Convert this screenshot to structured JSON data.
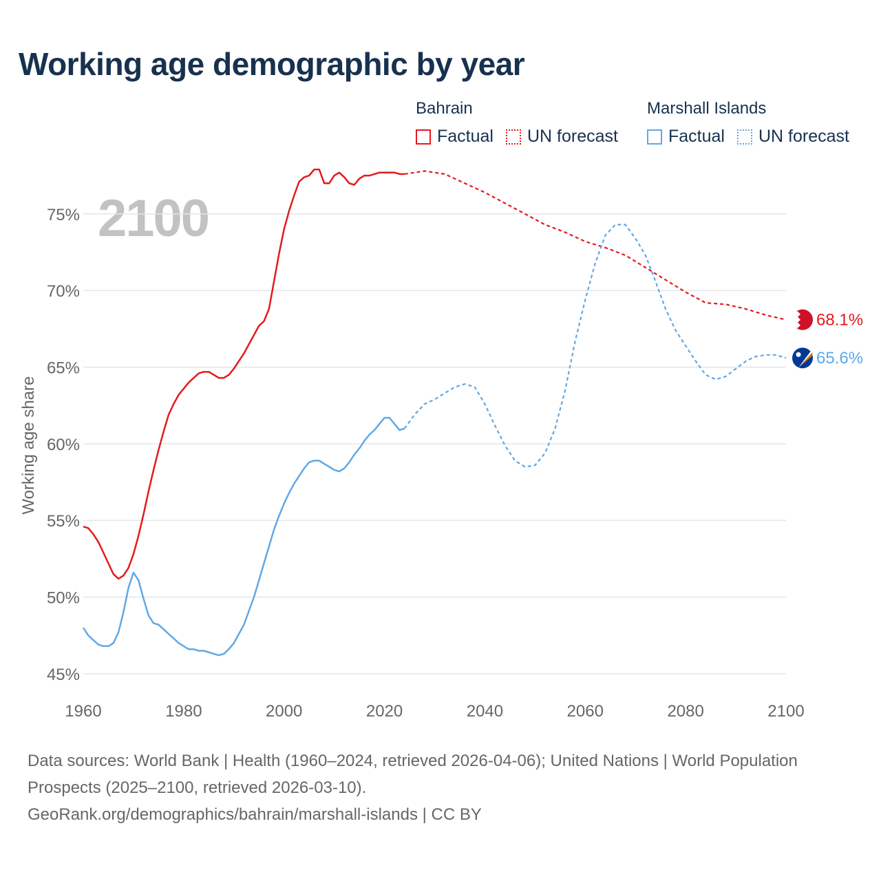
{
  "title": "Working age demographic by year",
  "legend": [
    {
      "country": "Bahrain",
      "factual_label": "Factual",
      "forecast_label": "UN forecast",
      "color": "#e31a1c"
    },
    {
      "country": "Marshall Islands",
      "factual_label": "Factual",
      "forecast_label": "UN forecast",
      "color": "#5fa8e6"
    }
  ],
  "footer": {
    "sources": "Data sources: World Bank | Health (1960–2024, retrieved 2026-04-06); United Nations | World Population Prospects (2025–2100, retrieved 2026-03-10).",
    "credit": "GeoRank.org/demographics/bahrain/marshall-islands | CC BY"
  },
  "chart_data": {
    "type": "line",
    "title": "Working age demographic by year",
    "year_label": "2100",
    "xlabel": "",
    "ylabel": "Working age share",
    "xlim": [
      1960,
      2100
    ],
    "ylim": [
      44.5,
      78
    ],
    "x_ticks": [
      1960,
      1980,
      2000,
      2020,
      2040,
      2060,
      2080,
      2100
    ],
    "x_tick_labels": [
      "1960",
      "1980",
      "2000",
      "2020",
      "2040",
      "2060",
      "2080",
      "2100"
    ],
    "y_ticks": [
      45,
      50,
      55,
      60,
      65,
      70,
      75
    ],
    "y_tick_labels": [
      "45%",
      "50%",
      "55%",
      "60%",
      "65%",
      "70%",
      "75%"
    ],
    "grid": true,
    "series": [
      {
        "name": "Bahrain",
        "color": "#e31a1c",
        "end_label": "68.1%",
        "factual": {
          "x": [
            1960,
            1961,
            1962,
            1963,
            1964,
            1965,
            1966,
            1967,
            1968,
            1969,
            1970,
            1971,
            1972,
            1973,
            1974,
            1975,
            1976,
            1977,
            1978,
            1979,
            1980,
            1981,
            1982,
            1983,
            1984,
            1985,
            1986,
            1987,
            1988,
            1989,
            1990,
            1991,
            1992,
            1993,
            1994,
            1995,
            1996,
            1997,
            1998,
            1999,
            2000,
            2001,
            2002,
            2003,
            2004,
            2005,
            2006,
            2007,
            2008,
            2009,
            2010,
            2011,
            2012,
            2013,
            2014,
            2015,
            2016,
            2017,
            2018,
            2019,
            2020,
            2021,
            2022,
            2023,
            2024
          ],
          "y": [
            54.6,
            54.5,
            54.1,
            53.6,
            52.9,
            52.2,
            51.5,
            51.2,
            51.4,
            51.9,
            52.8,
            54.0,
            55.4,
            56.9,
            58.3,
            59.6,
            60.8,
            61.9,
            62.6,
            63.2,
            63.6,
            64.0,
            64.3,
            64.6,
            64.7,
            64.7,
            64.5,
            64.3,
            64.3,
            64.5,
            64.9,
            65.4,
            65.9,
            66.5,
            67.1,
            67.7,
            68.0,
            68.8,
            70.6,
            72.4,
            74.0,
            75.2,
            76.2,
            77.1,
            77.4,
            77.5,
            77.9,
            77.9,
            77.0,
            77.0,
            77.5,
            77.7,
            77.4,
            77.0,
            76.9,
            77.3,
            77.5,
            77.5,
            77.6,
            77.7,
            77.7,
            77.7,
            77.7,
            77.6,
            77.6
          ]
        },
        "forecast": {
          "x": [
            2024,
            2028,
            2032,
            2036,
            2040,
            2044,
            2048,
            2052,
            2056,
            2060,
            2064,
            2068,
            2072,
            2076,
            2080,
            2084,
            2088,
            2092,
            2096,
            2100
          ],
          "y": [
            77.6,
            77.8,
            77.6,
            77.0,
            76.4,
            75.7,
            75.0,
            74.3,
            73.8,
            73.2,
            72.8,
            72.3,
            71.5,
            70.7,
            69.9,
            69.2,
            69.1,
            68.8,
            68.4,
            68.1
          ]
        }
      },
      {
        "name": "Marshall Islands",
        "color": "#5fa8e6",
        "end_label": "65.6%",
        "factual": {
          "x": [
            1960,
            1961,
            1962,
            1963,
            1964,
            1965,
            1966,
            1967,
            1968,
            1969,
            1970,
            1971,
            1972,
            1973,
            1974,
            1975,
            1976,
            1977,
            1978,
            1979,
            1980,
            1981,
            1982,
            1983,
            1984,
            1985,
            1986,
            1987,
            1988,
            1989,
            1990,
            1991,
            1992,
            1993,
            1994,
            1995,
            1996,
            1997,
            1998,
            1999,
            2000,
            2001,
            2002,
            2003,
            2004,
            2005,
            2006,
            2007,
            2008,
            2009,
            2010,
            2011,
            2012,
            2013,
            2014,
            2015,
            2016,
            2017,
            2018,
            2019,
            2020,
            2021,
            2022,
            2023,
            2024
          ],
          "y": [
            48.0,
            47.5,
            47.2,
            46.9,
            46.8,
            46.8,
            47.0,
            47.7,
            49.0,
            50.6,
            51.6,
            51.1,
            49.9,
            48.8,
            48.3,
            48.2,
            47.9,
            47.6,
            47.3,
            47.0,
            46.8,
            46.6,
            46.6,
            46.5,
            46.5,
            46.4,
            46.3,
            46.2,
            46.3,
            46.6,
            47.0,
            47.6,
            48.2,
            49.1,
            50.0,
            51.1,
            52.2,
            53.3,
            54.4,
            55.3,
            56.1,
            56.8,
            57.4,
            57.9,
            58.4,
            58.8,
            58.9,
            58.9,
            58.7,
            58.5,
            58.3,
            58.2,
            58.4,
            58.8,
            59.3,
            59.7,
            60.2,
            60.6,
            60.9,
            61.3,
            61.7,
            61.7,
            61.3,
            60.9,
            61.0
          ]
        },
        "forecast": {
          "x": [
            2024,
            2026,
            2028,
            2030,
            2032,
            2034,
            2036,
            2038,
            2040,
            2042,
            2044,
            2046,
            2048,
            2050,
            2052,
            2054,
            2056,
            2058,
            2060,
            2062,
            2064,
            2066,
            2068,
            2070,
            2072,
            2074,
            2076,
            2078,
            2080,
            2082,
            2084,
            2086,
            2088,
            2090,
            2092,
            2094,
            2096,
            2098,
            2100
          ],
          "y": [
            61.0,
            61.9,
            62.6,
            62.9,
            63.3,
            63.7,
            63.9,
            63.7,
            62.6,
            61.2,
            59.9,
            58.9,
            58.5,
            58.6,
            59.4,
            61.0,
            63.5,
            66.7,
            69.4,
            71.8,
            73.6,
            74.3,
            74.3,
            73.4,
            72.3,
            70.6,
            68.8,
            67.4,
            66.4,
            65.4,
            64.5,
            64.2,
            64.4,
            64.9,
            65.4,
            65.7,
            65.8,
            65.8,
            65.6
          ]
        }
      }
    ]
  }
}
